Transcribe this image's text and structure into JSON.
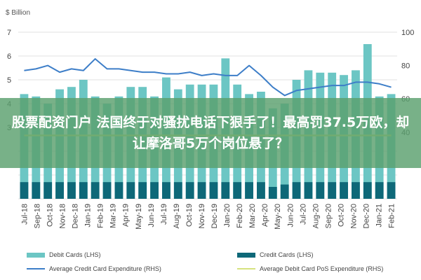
{
  "chart_data": {
    "type": "bar",
    "unit_label": "$ Billion",
    "categories": [
      "Jul-18",
      "Aug-18",
      "Sep-18",
      "Oct-18",
      "Nov-18",
      "Dec-18",
      "Jan-19",
      "Feb-19",
      "Mar-19",
      "Apr-19",
      "May-19",
      "Jun-19",
      "Jul-19",
      "Aug-19",
      "Sep-19",
      "Oct-19",
      "Nov-19",
      "Dec-19",
      "Jan-20",
      "Feb-20",
      "Mar-20",
      "Apr-20",
      "May-20",
      "Jun-20",
      "Jul-20",
      "Aug-20",
      "Sep-20",
      "Oct-20",
      "Nov-20",
      "Dec-20",
      "Jan-21",
      "Feb-21"
    ],
    "x_tick_labels": [
      "Jul-18",
      "Sep-18",
      "Oct-18",
      "Nov-18",
      "Dec-18",
      "Jan-19",
      "Feb-19",
      "Mar-19",
      "Apr-19",
      "May-19",
      "Jun-19",
      "Jul-19",
      "Aug-19",
      "Oct-19",
      "Nov-19",
      "Dec-19",
      "Jan-20",
      "Feb-20",
      "Mar-20",
      "Apr-20",
      "May-20",
      "Jun-20",
      "Jul-20",
      "Aug-20",
      "Sep-20",
      "Oct-20",
      "Nov-20",
      "Dec-20",
      "Jan-21",
      "Feb-21"
    ],
    "left_axis": {
      "min": 0,
      "max": 7,
      "ticks": [
        3,
        4,
        5,
        6,
        7
      ]
    },
    "right_axis": {
      "min": 0,
      "max": 100,
      "ticks": [
        40,
        60,
        80,
        100
      ]
    },
    "series": [
      {
        "name": "Debit Cards (LHS)",
        "kind": "bar",
        "axis": "left",
        "color": "#6cc6c4",
        "values": [
          4.4,
          4.3,
          4.0,
          4.6,
          4.7,
          5.0,
          4.3,
          4.0,
          4.3,
          4.7,
          4.7,
          4.3,
          5.1,
          4.6,
          4.8,
          4.8,
          4.8,
          5.9,
          4.8,
          4.4,
          4.5,
          3.8,
          4.0,
          5.0,
          5.4,
          5.3,
          5.3,
          5.2,
          5.4,
          6.5,
          4.3,
          4.4
        ]
      },
      {
        "name": "Credit Cards (LHS)",
        "kind": "bar",
        "axis": "left",
        "color": "#0e6878",
        "values": [
          0.7,
          0.7,
          0.7,
          0.7,
          0.7,
          0.7,
          0.7,
          0.7,
          0.7,
          0.7,
          0.7,
          0.7,
          0.7,
          0.7,
          0.7,
          0.7,
          0.7,
          0.7,
          0.7,
          0.7,
          0.7,
          0.5,
          0.6,
          0.7,
          0.7,
          0.7,
          0.7,
          0.7,
          0.7,
          0.7,
          0.7,
          0.7
        ]
      },
      {
        "name": "Average Credit Card Expenditure (RHS)",
        "kind": "line",
        "axis": "right",
        "color": "#3d7ec8",
        "values": [
          77,
          78,
          80,
          76,
          78,
          77,
          84,
          78,
          78,
          77,
          76,
          76,
          75,
          75,
          76,
          74,
          75,
          74,
          74,
          80,
          74,
          67,
          62,
          65,
          66,
          67,
          68,
          68,
          70,
          70,
          69,
          67
        ]
      },
      {
        "name": "Average Debit Card PoS Expenditure (RHS)",
        "kind": "line",
        "axis": "right",
        "color": "#d6e27e",
        "values": [
          38,
          38,
          38,
          38,
          38,
          38,
          38,
          38,
          38,
          38,
          38,
          38,
          38,
          38,
          38,
          38,
          38,
          38,
          38,
          38,
          38,
          38,
          38,
          38,
          38,
          38,
          38,
          38,
          38,
          38,
          38,
          38
        ]
      }
    ],
    "grid": true,
    "legend_position": "bottom"
  },
  "overlay": {
    "headline": "股票配资门户 法国终于对骚扰电话下狠手了！最高罚37.5万欧，却让摩洛哥5万个岗位悬了？"
  }
}
